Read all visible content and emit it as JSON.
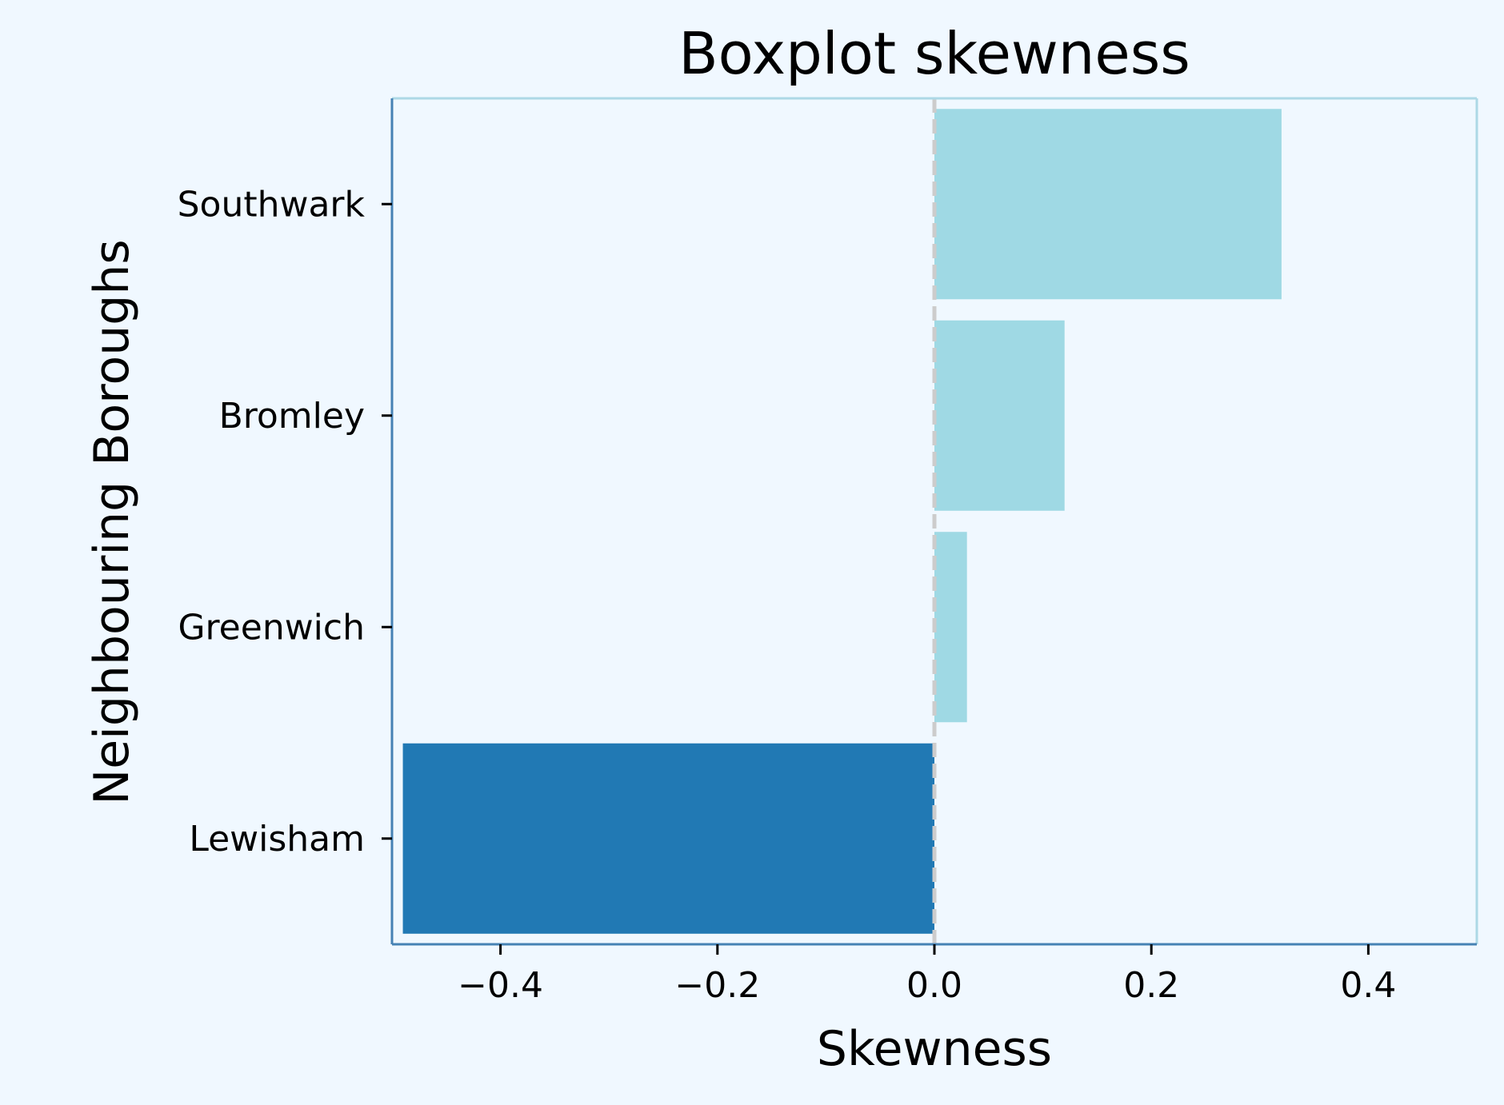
{
  "chart_data": {
    "type": "bar",
    "orientation": "horizontal",
    "title": "Boxplot skewness",
    "xlabel": "Skewness",
    "ylabel": "Neighbouring Boroughs",
    "categories": [
      "Lewisham",
      "Greenwich",
      "Bromley",
      "Southwark"
    ],
    "values": [
      -0.49,
      0.03,
      0.12,
      0.32
    ],
    "xlim": [
      -0.5,
      0.5
    ],
    "xticks": [
      {
        "value": -0.4,
        "label": "−0.4"
      },
      {
        "value": -0.2,
        "label": "−0.2"
      },
      {
        "value": 0.0,
        "label": "0.0"
      },
      {
        "value": 0.2,
        "label": "0.2"
      },
      {
        "value": 0.4,
        "label": "0.4"
      }
    ],
    "reference_line": {
      "value": 0.0,
      "style": "dashed",
      "color": "#cccccc"
    },
    "grid": false,
    "colors": {
      "background": "#f0f8ff",
      "negative_bar": "#2179b4",
      "positive_bar": "#9fd9e4",
      "left_bottom_spine": "#4682b4",
      "top_right_spine": "#add8e6"
    }
  }
}
